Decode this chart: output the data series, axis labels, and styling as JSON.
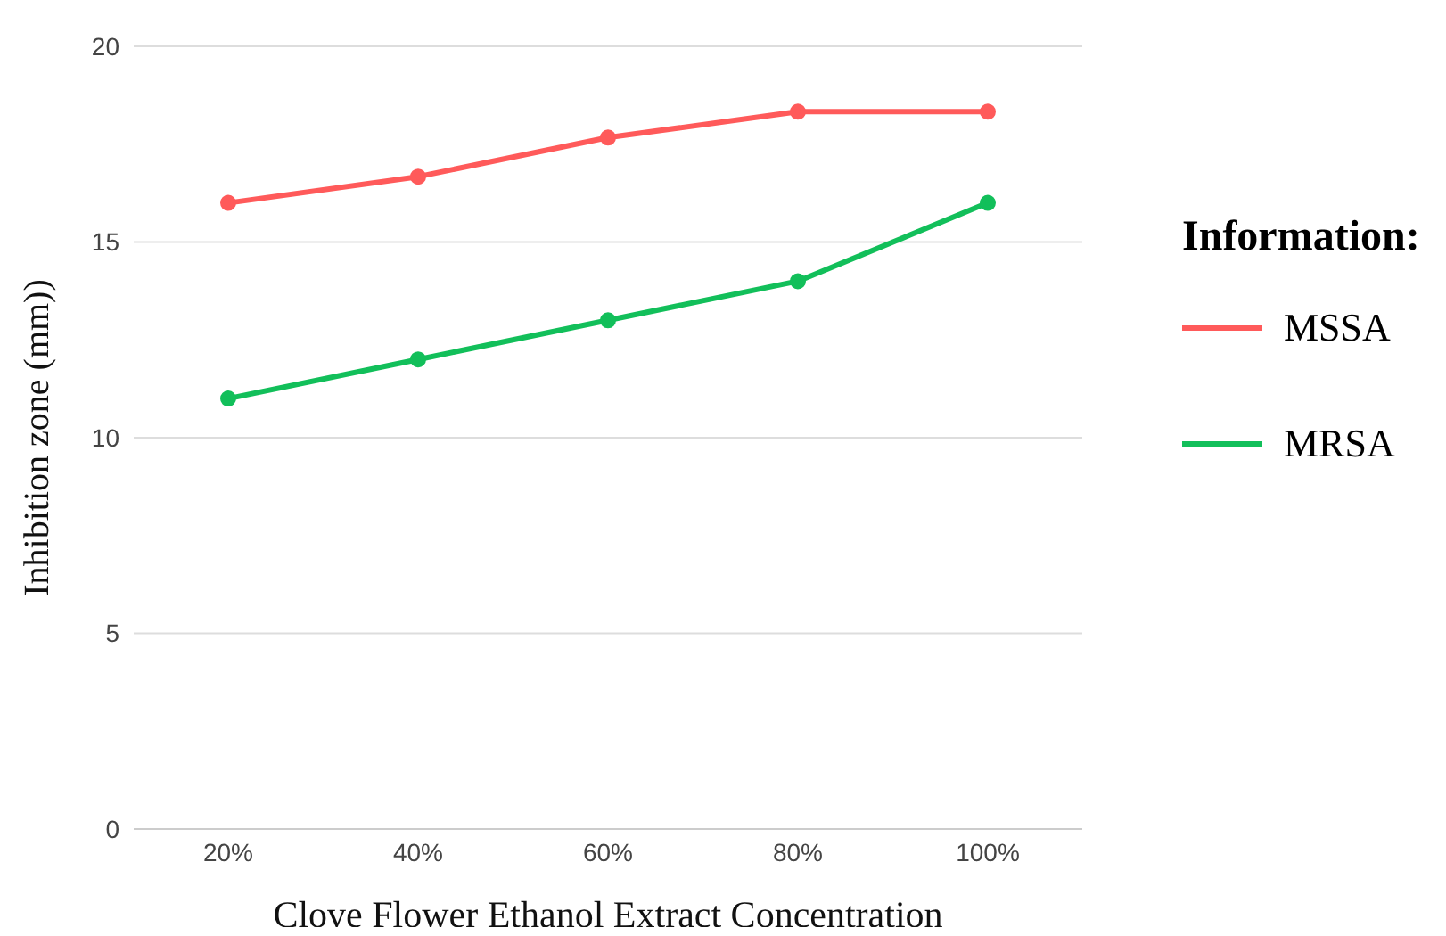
{
  "chart_data": {
    "type": "line",
    "xlabel": "Clove Flower Ethanol Extract Concentration",
    "ylabel": "Inhibition zone (mm))",
    "legend_title": "Information:",
    "categories": [
      "20%",
      "40%",
      "60%",
      "80%",
      "100%"
    ],
    "series": [
      {
        "name": "MSSA",
        "color": "#ff5a5a",
        "values": [
          16,
          16.67,
          17.67,
          18.33,
          18.33
        ]
      },
      {
        "name": "MRSA",
        "color": "#12bf5a",
        "values": [
          11,
          12,
          13,
          14,
          16
        ]
      }
    ],
    "ylim": [
      0,
      20
    ],
    "yticks": [
      0,
      5,
      10,
      15,
      20
    ],
    "grid": "y",
    "legend": "right",
    "marker": "circle",
    "line_style": "solid"
  }
}
